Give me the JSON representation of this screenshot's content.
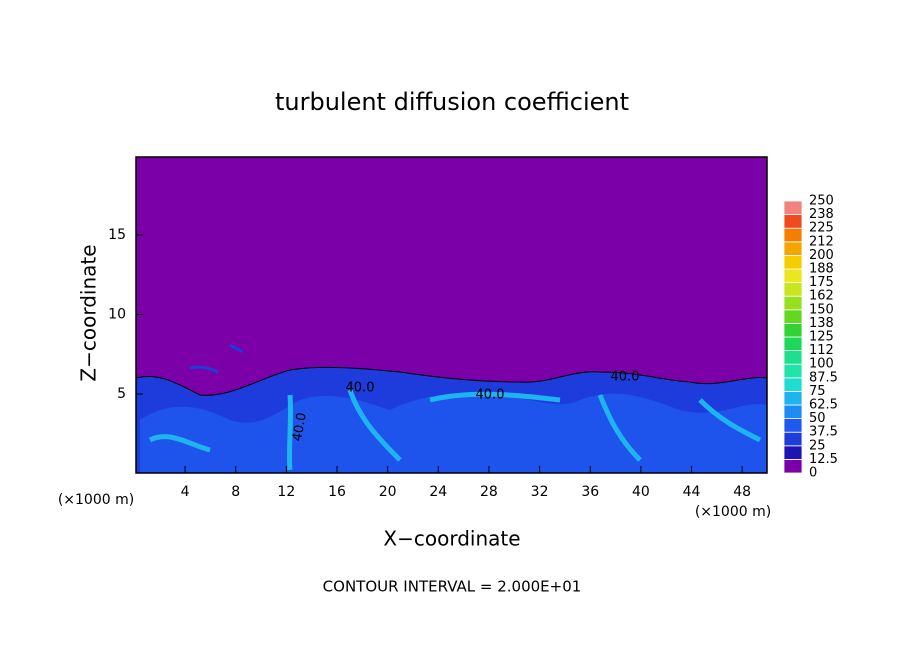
{
  "chart_data": {
    "type": "contour",
    "title": "turbulent diffusion coefficient",
    "xlabel": "X−coordinate",
    "ylabel": "Z−coordinate",
    "x_unit": "(×1000 m)",
    "y_unit": "(×1000 m)",
    "footer": "CONTOUR INTERVAL = 2.000E+01",
    "contour_labels": [
      "40.0",
      "40.0",
      "40.0",
      "40.0"
    ],
    "xlim": [
      0,
      50
    ],
    "xticks": [
      4,
      8,
      12,
      16,
      20,
      24,
      28,
      32,
      36,
      40,
      44,
      48
    ],
    "ylim": [
      0,
      20
    ],
    "yticks": [
      5,
      10,
      15
    ],
    "colorbar": {
      "levels": [
        0,
        12.5,
        25,
        37.5,
        50,
        62.5,
        75,
        87.5,
        100,
        112,
        125,
        138,
        150,
        162,
        175,
        188,
        200,
        212,
        225,
        238,
        250
      ],
      "colors": [
        "#7b00a8",
        "#1e14b4",
        "#1e3cdc",
        "#1e5af0",
        "#1e8cf0",
        "#1eb4f0",
        "#1edcd2",
        "#1ee6aa",
        "#1ee08c",
        "#1ed85a",
        "#32d232",
        "#64d81e",
        "#96e01e",
        "#c8e61e",
        "#ece61e",
        "#f5cd00",
        "#f5a500",
        "#f57d00",
        "#f04b1e",
        "#f08282"
      ]
    }
  }
}
